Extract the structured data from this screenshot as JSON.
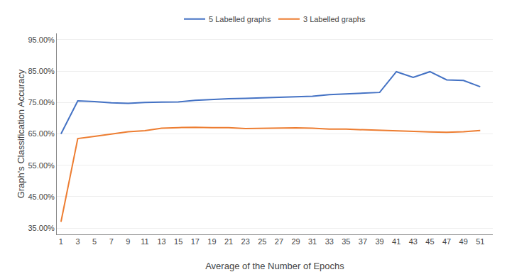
{
  "chart_data": {
    "type": "line",
    "x_label": "Average of the Number of Epochs",
    "y_label": "Graph's Classification Accuracy",
    "x": [
      1,
      3,
      5,
      7,
      9,
      11,
      13,
      15,
      17,
      19,
      21,
      23,
      25,
      27,
      29,
      31,
      33,
      35,
      37,
      39,
      41,
      43,
      45,
      47,
      49,
      51
    ],
    "series": [
      {
        "name": "5 Labelled graphs",
        "color": "#4472c4",
        "values": [
          0.65,
          0.755,
          0.753,
          0.749,
          0.747,
          0.75,
          0.751,
          0.752,
          0.757,
          0.76,
          0.762,
          0.763,
          0.765,
          0.766,
          0.768,
          0.77,
          0.775,
          0.777,
          0.78,
          0.782,
          0.848,
          0.83,
          0.848,
          0.822,
          0.82,
          0.8
        ]
      },
      {
        "name": "3 Labelled graphs",
        "color": "#ed7d31",
        "values": [
          0.37,
          0.635,
          0.642,
          0.65,
          0.657,
          0.66,
          0.668,
          0.67,
          0.671,
          0.67,
          0.67,
          0.667,
          0.668,
          0.668,
          0.669,
          0.668,
          0.665,
          0.665,
          0.663,
          0.661,
          0.66,
          0.658,
          0.656,
          0.655,
          0.657,
          0.661
        ]
      }
    ],
    "xlim": [
      0.5,
      52.5
    ],
    "xticks": [
      1,
      3,
      5,
      7,
      9,
      11,
      13,
      15,
      17,
      19,
      21,
      23,
      25,
      27,
      29,
      31,
      33,
      35,
      37,
      39,
      41,
      43,
      45,
      47,
      49,
      51
    ],
    "ylim": [
      0.33,
      0.97
    ],
    "yticks": [
      {
        "value": 0.35,
        "label": "35.00%"
      },
      {
        "value": 0.45,
        "label": "45.00%"
      },
      {
        "value": 0.55,
        "label": "55.00%"
      },
      {
        "value": 0.65,
        "label": "65.00%"
      },
      {
        "value": 0.75,
        "label": "75.00%"
      },
      {
        "value": 0.85,
        "label": "85.00%"
      },
      {
        "value": 0.95,
        "label": "95.00%"
      }
    ],
    "grid": true,
    "legend": "top"
  }
}
